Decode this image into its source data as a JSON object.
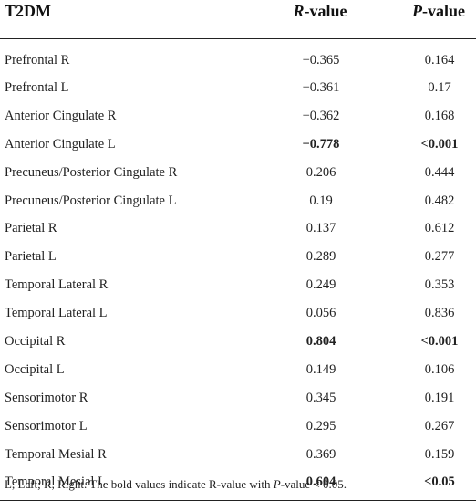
{
  "table": {
    "headers": {
      "group": "T2DM",
      "r_italic": "R",
      "r_suffix": "-value",
      "p_italic": "P",
      "p_suffix": "-value"
    },
    "rows": [
      {
        "region": "Prefrontal R",
        "r": "−0.365",
        "p": "0.164",
        "bold_r": false,
        "bold_p": false
      },
      {
        "region": "Prefrontal L",
        "r": "−0.361",
        "p": "0.17",
        "bold_r": false,
        "bold_p": false
      },
      {
        "region": "Anterior Cingulate R",
        "r": "−0.362",
        "p": "0.168",
        "bold_r": false,
        "bold_p": false
      },
      {
        "region": "Anterior Cingulate L",
        "r": "−0.778",
        "p": "<0.001",
        "bold_r": true,
        "bold_p": true
      },
      {
        "region": "Precuneus/Posterior Cingulate R",
        "r": "0.206",
        "p": "0.444",
        "bold_r": false,
        "bold_p": false
      },
      {
        "region": "Precuneus/Posterior Cingulate L",
        "r": "0.19",
        "p": "0.482",
        "bold_r": false,
        "bold_p": false
      },
      {
        "region": "Parietal R",
        "r": "0.137",
        "p": "0.612",
        "bold_r": false,
        "bold_p": false
      },
      {
        "region": "Parietal L",
        "r": "0.289",
        "p": "0.277",
        "bold_r": false,
        "bold_p": false
      },
      {
        "region": "Temporal Lateral R",
        "r": "0.249",
        "p": "0.353",
        "bold_r": false,
        "bold_p": false
      },
      {
        "region": "Temporal Lateral L",
        "r": "0.056",
        "p": "0.836",
        "bold_r": false,
        "bold_p": false
      },
      {
        "region": "Occipital R",
        "r": "0.804",
        "p": "<0.001",
        "bold_r": true,
        "bold_p": true
      },
      {
        "region": "Occipital L",
        "r": "0.149",
        "p": "0.106",
        "bold_r": false,
        "bold_p": false
      },
      {
        "region": "Sensorimotor R",
        "r": "0.345",
        "p": "0.191",
        "bold_r": false,
        "bold_p": false
      },
      {
        "region": "Sensorimotor L",
        "r": "0.295",
        "p": "0.267",
        "bold_r": false,
        "bold_p": false
      },
      {
        "region": "Temporal Mesial R",
        "r": "0.369",
        "p": "0.159",
        "bold_r": false,
        "bold_p": false
      },
      {
        "region": "Temporal Mesial L",
        "r": "0.604",
        "p": "<0.05",
        "bold_r": true,
        "bold_p": true
      }
    ]
  },
  "footnote": {
    "pre": "L, Left; R, Right. The bold values indicate R-value with ",
    "italic": "P",
    "post": "-value < 0.05."
  }
}
